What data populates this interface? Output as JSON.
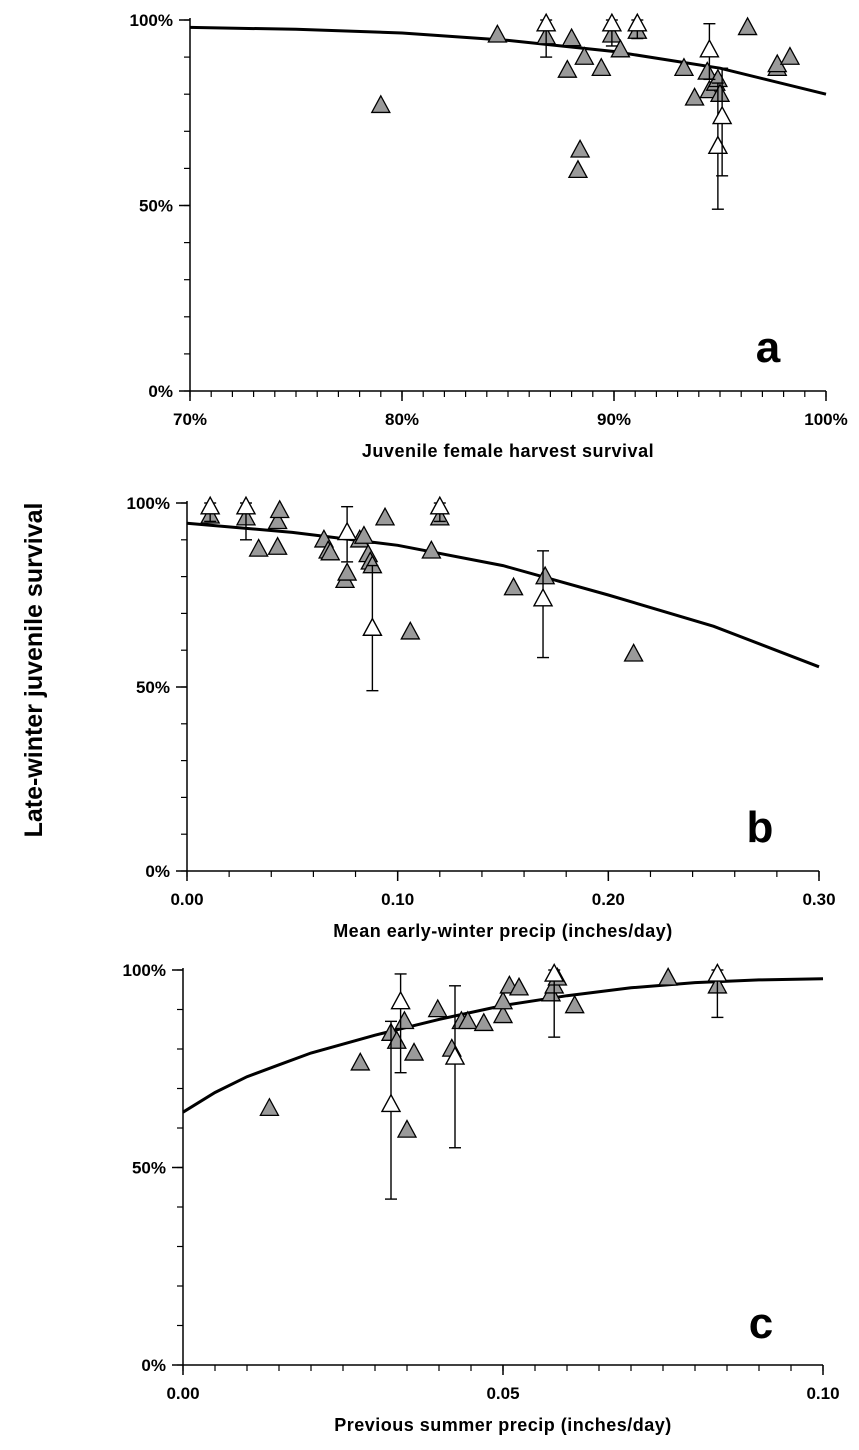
{
  "y_axis_title": "Late-winter juvenile survival",
  "chart_data": [
    {
      "type": "scatter",
      "panel_label": "a",
      "xlabel": "Juvenile female harvest survival",
      "ylabel": "Late-winter juvenile survival",
      "xlim": [
        0.7,
        1.0
      ],
      "ylim": [
        0,
        1
      ],
      "x_ticks": [
        0.7,
        0.8,
        0.9,
        1.0
      ],
      "x_tick_labels": [
        "70%",
        "80%",
        "90%",
        "100%"
      ],
      "y_ticks": [
        0,
        0.5,
        1.0
      ],
      "y_tick_labels": [
        "0%",
        "50%",
        "100%"
      ],
      "grid": false,
      "filled_points": [
        [
          0.79,
          0.77
        ],
        [
          0.845,
          0.96
        ],
        [
          0.868,
          0.955
        ],
        [
          0.878,
          0.865
        ],
        [
          0.88,
          0.95
        ],
        [
          0.883,
          0.595
        ],
        [
          0.884,
          0.65
        ],
        [
          0.886,
          0.9
        ],
        [
          0.894,
          0.87
        ],
        [
          0.899,
          0.96
        ],
        [
          0.903,
          0.92
        ],
        [
          0.911,
          0.97
        ],
        [
          0.933,
          0.87
        ],
        [
          0.938,
          0.79
        ],
        [
          0.944,
          0.86
        ],
        [
          0.945,
          0.81
        ],
        [
          0.948,
          0.83
        ],
        [
          0.949,
          0.84
        ],
        [
          0.95,
          0.8
        ],
        [
          0.963,
          0.98
        ],
        [
          0.977,
          0.87
        ],
        [
          0.977,
          0.88
        ],
        [
          0.983,
          0.9
        ]
      ],
      "open_points": [
        {
          "x": 0.868,
          "y": 0.99,
          "lo": 0.9,
          "hi": 1.0
        },
        {
          "x": 0.899,
          "y": 0.99,
          "lo": 0.93,
          "hi": 1.0
        },
        {
          "x": 0.911,
          "y": 0.99,
          "lo": 0.95,
          "hi": 1.0
        },
        {
          "x": 0.945,
          "y": 0.92,
          "lo": 0.84,
          "hi": 0.99
        },
        {
          "x": 0.949,
          "y": 0.66,
          "lo": 0.49,
          "hi": 0.83
        },
        {
          "x": 0.951,
          "y": 0.74,
          "lo": 0.58,
          "hi": 0.87
        }
      ],
      "fit_curve": [
        [
          0.7,
          0.98
        ],
        [
          0.75,
          0.975
        ],
        [
          0.8,
          0.965
        ],
        [
          0.85,
          0.945
        ],
        [
          0.9,
          0.915
        ],
        [
          0.95,
          0.87
        ],
        [
          1.0,
          0.8
        ]
      ]
    },
    {
      "type": "scatter",
      "panel_label": "b",
      "xlabel": "Mean early-winter precip (inches/day)",
      "ylabel": "Late-winter juvenile survival",
      "xlim": [
        0.0,
        0.3
      ],
      "ylim": [
        0,
        1
      ],
      "x_ticks": [
        0.0,
        0.1,
        0.2,
        0.3
      ],
      "x_tick_labels": [
        "0.00",
        "0.10",
        "0.20",
        "0.30"
      ],
      "y_ticks": [
        0,
        0.5,
        1.0
      ],
      "y_tick_labels": [
        "0%",
        "50%",
        "100%"
      ],
      "grid": false,
      "filled_points": [
        [
          0.011,
          0.965
        ],
        [
          0.028,
          0.96
        ],
        [
          0.034,
          0.875
        ],
        [
          0.043,
          0.88
        ],
        [
          0.043,
          0.95
        ],
        [
          0.044,
          0.98
        ],
        [
          0.065,
          0.9
        ],
        [
          0.067,
          0.87
        ],
        [
          0.068,
          0.865
        ],
        [
          0.075,
          0.79
        ],
        [
          0.076,
          0.81
        ],
        [
          0.082,
          0.9
        ],
        [
          0.084,
          0.91
        ],
        [
          0.086,
          0.86
        ],
        [
          0.087,
          0.84
        ],
        [
          0.088,
          0.83
        ],
        [
          0.094,
          0.96
        ],
        [
          0.106,
          0.65
        ],
        [
          0.116,
          0.87
        ],
        [
          0.12,
          0.96
        ],
        [
          0.155,
          0.77
        ],
        [
          0.17,
          0.8
        ],
        [
          0.212,
          0.59
        ]
      ],
      "open_points": [
        {
          "x": 0.011,
          "y": 0.99,
          "lo": 0.95,
          "hi": 1.0
        },
        {
          "x": 0.028,
          "y": 0.99,
          "lo": 0.9,
          "hi": 1.0
        },
        {
          "x": 0.076,
          "y": 0.92,
          "lo": 0.84,
          "hi": 0.99
        },
        {
          "x": 0.088,
          "y": 0.66,
          "lo": 0.49,
          "hi": 0.83
        },
        {
          "x": 0.12,
          "y": 0.99,
          "lo": 0.95,
          "hi": 1.0
        },
        {
          "x": 0.169,
          "y": 0.74,
          "lo": 0.58,
          "hi": 0.87
        }
      ],
      "fit_curve": [
        [
          0.0,
          0.945
        ],
        [
          0.05,
          0.92
        ],
        [
          0.1,
          0.885
        ],
        [
          0.15,
          0.83
        ],
        [
          0.2,
          0.75
        ],
        [
          0.25,
          0.665
        ],
        [
          0.3,
          0.555
        ]
      ]
    },
    {
      "type": "scatter",
      "panel_label": "c",
      "xlabel": "Previous summer precip (inches/day)",
      "ylabel": "Late-winter juvenile survival",
      "xlim": [
        0.0,
        0.1
      ],
      "ylim": [
        0,
        1
      ],
      "x_ticks": [
        0.0,
        0.05,
        0.1
      ],
      "x_tick_labels": [
        "0.00",
        "0.05",
        "0.10"
      ],
      "y_ticks": [
        0,
        0.5,
        1.0
      ],
      "y_tick_labels": [
        "0%",
        "50%",
        "100%"
      ],
      "grid": false,
      "filled_points": [
        [
          0.0135,
          0.65
        ],
        [
          0.0277,
          0.765
        ],
        [
          0.0325,
          0.84
        ],
        [
          0.0334,
          0.82
        ],
        [
          0.0346,
          0.87
        ],
        [
          0.035,
          0.595
        ],
        [
          0.0361,
          0.79
        ],
        [
          0.0398,
          0.9
        ],
        [
          0.042,
          0.8
        ],
        [
          0.0435,
          0.87
        ],
        [
          0.0445,
          0.87
        ],
        [
          0.047,
          0.865
        ],
        [
          0.05,
          0.885
        ],
        [
          0.05,
          0.92
        ],
        [
          0.051,
          0.96
        ],
        [
          0.0525,
          0.955
        ],
        [
          0.0575,
          0.94
        ],
        [
          0.058,
          0.96
        ],
        [
          0.0585,
          0.98
        ],
        [
          0.0612,
          0.91
        ],
        [
          0.0758,
          0.98
        ],
        [
          0.0835,
          0.96
        ]
      ],
      "open_points": [
        {
          "x": 0.0325,
          "y": 0.66,
          "lo": 0.42,
          "hi": 0.87
        },
        {
          "x": 0.034,
          "y": 0.92,
          "lo": 0.74,
          "hi": 0.99
        },
        {
          "x": 0.0425,
          "y": 0.78,
          "lo": 0.55,
          "hi": 0.96
        },
        {
          "x": 0.058,
          "y": 0.99,
          "lo": 0.83,
          "hi": 1.0
        },
        {
          "x": 0.0835,
          "y": 0.99,
          "lo": 0.88,
          "hi": 1.0
        }
      ],
      "fit_curve": [
        [
          0.0,
          0.64
        ],
        [
          0.005,
          0.69
        ],
        [
          0.01,
          0.73
        ],
        [
          0.015,
          0.76
        ],
        [
          0.02,
          0.79
        ],
        [
          0.03,
          0.835
        ],
        [
          0.04,
          0.875
        ],
        [
          0.05,
          0.91
        ],
        [
          0.06,
          0.935
        ],
        [
          0.07,
          0.955
        ],
        [
          0.08,
          0.968
        ],
        [
          0.09,
          0.975
        ],
        [
          0.1,
          0.978
        ]
      ]
    }
  ]
}
